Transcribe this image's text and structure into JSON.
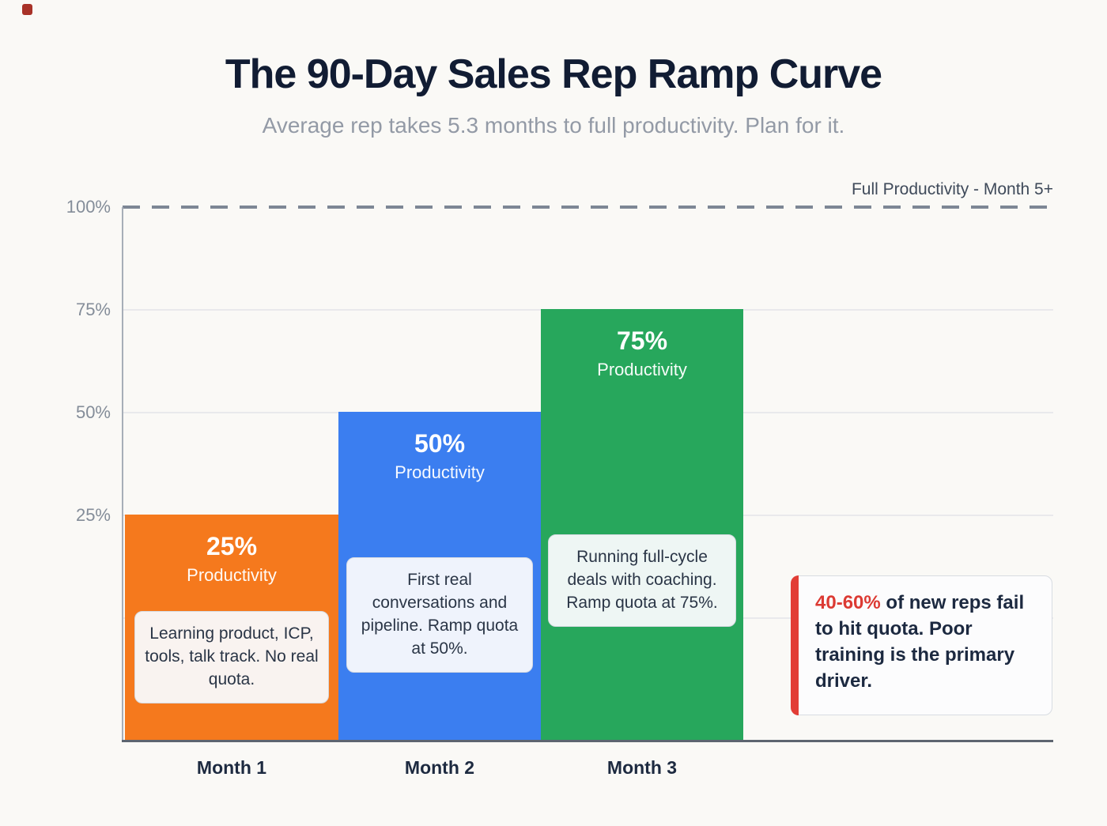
{
  "header": {
    "title": "The 90-Day Sales Rep Ramp Curve",
    "subtitle": "Average rep takes 5.3 months to full productivity. Plan for it."
  },
  "chart_data": {
    "type": "bar",
    "title": "The 90-Day Sales Rep Ramp Curve",
    "subtitle": "Average rep takes 5.3 months to full productivity. Plan for it.",
    "categories": [
      "Month 1",
      "Month 2",
      "Month 3"
    ],
    "values": [
      25,
      50,
      75
    ],
    "ylim": [
      0,
      100
    ],
    "ytick_labels": [
      "100%",
      "75%",
      "50%",
      "25%"
    ],
    "grid": true,
    "legend": "none",
    "reference_line": {
      "value": 100,
      "style": "dashed",
      "label": "Full Productivity - Month 5+"
    },
    "bars": [
      {
        "category": "Month 1",
        "value": 25,
        "value_label": "25%",
        "series_label": "Productivity",
        "annotation": "Learning product, ICP, tools, talk track. No real quota.",
        "color": "#F5791D"
      },
      {
        "category": "Month 2",
        "value": 50,
        "value_label": "50%",
        "series_label": "Productivity",
        "annotation": "First real conversations and pipeline. Ramp quota at 50%.",
        "color": "#3B7EF0"
      },
      {
        "category": "Month 3",
        "value": 75,
        "value_label": "75%",
        "series_label": "Productivity",
        "annotation": "Running full-cycle deals with coaching. Ramp quota at 75%.",
        "color": "#27A75C"
      }
    ]
  },
  "callout": {
    "highlight": "40-60%",
    "text": " of new reps fail to hit quota. Poor training is the primary driver.",
    "highlight_color": "#DC3A33",
    "accent_color": "#E23D35"
  }
}
